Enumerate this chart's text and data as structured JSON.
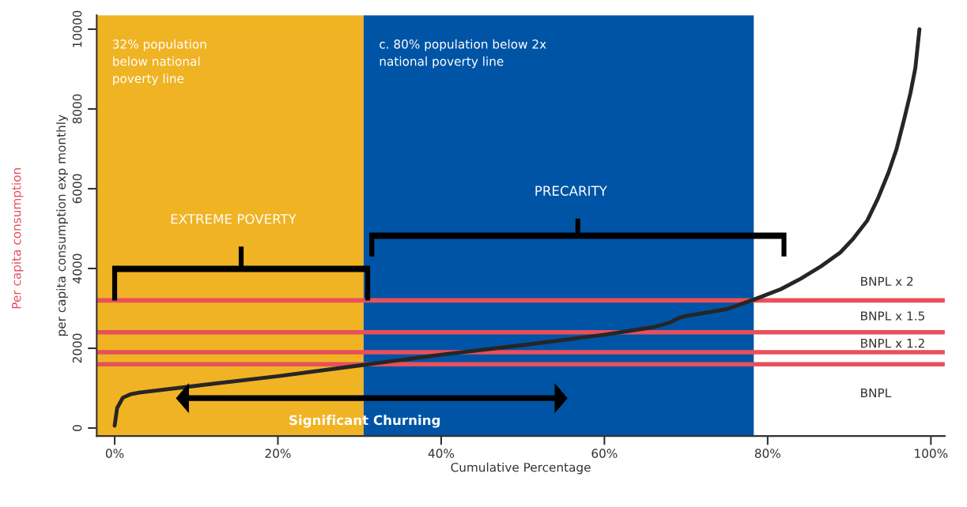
{
  "chart_data": {
    "type": "line",
    "xlabel": "Cumulative Percentage",
    "ylabel": "per capita consumption exp monthly",
    "x": [
      0,
      0.3,
      1,
      2,
      3,
      10,
      20,
      30,
      40,
      50,
      60,
      66,
      68,
      69,
      70,
      75,
      78.3,
      81.6,
      84.1,
      86.5,
      88.9,
      90.5,
      92.2,
      93.5,
      94.8,
      95.8,
      96.7,
      97.5,
      98.1,
      98.6
    ],
    "series": [
      {
        "color": "#262626",
        "values": [
          60,
          500,
          760,
          850,
          890,
          1060,
          1300,
          1570,
          1840,
          2080,
          2340,
          2530,
          2640,
          2750,
          2810,
          2980,
          3220,
          3480,
          3750,
          4050,
          4400,
          4750,
          5200,
          5750,
          6400,
          7000,
          7720,
          8400,
          9030,
          10000
        ]
      }
    ],
    "xlim": [
      -2.2,
      101.7
    ],
    "ylim": [
      -200,
      10350
    ],
    "xticks": [
      {
        "value": 0,
        "label": "0%"
      },
      {
        "value": 20,
        "label": "20%"
      },
      {
        "value": 40,
        "label": "40%"
      },
      {
        "value": 60,
        "label": "60%"
      },
      {
        "value": 80,
        "label": "80%"
      },
      {
        "value": 100,
        "label": "100%"
      }
    ],
    "yticks": [
      0,
      2000,
      4000,
      6000,
      8000,
      10000
    ],
    "grid": false,
    "legend": false,
    "marker": "none",
    "line_style": "solid",
    "bands": [
      {
        "axis": "x",
        "from": -2.2,
        "to": 30.5,
        "label": "32% population\nbelow national\npoverty line",
        "color": "#f0b323"
      },
      {
        "axis": "x",
        "from": 30.5,
        "to": 78.3,
        "label": "c. 80% population below 2x\nnational poverty line",
        "color": "#0054a6"
      }
    ],
    "ref_lines": [
      {
        "axis": "y",
        "value": 3200,
        "color": "#e8505b"
      },
      {
        "axis": "y",
        "value": 2400,
        "color": "#e8505b"
      },
      {
        "axis": "y",
        "value": 1900,
        "color": "#e8505b"
      },
      {
        "axis": "y",
        "value": 1600,
        "color": "#e8505b"
      }
    ],
    "annotations": [
      "Per capita consumption",
      "BNPL x 2",
      "BNPL x 1.5",
      "BNPL x 1.2",
      "BNPL",
      "EXTREME POVERTY",
      "PRECARITY",
      "Significant Churning"
    ]
  }
}
